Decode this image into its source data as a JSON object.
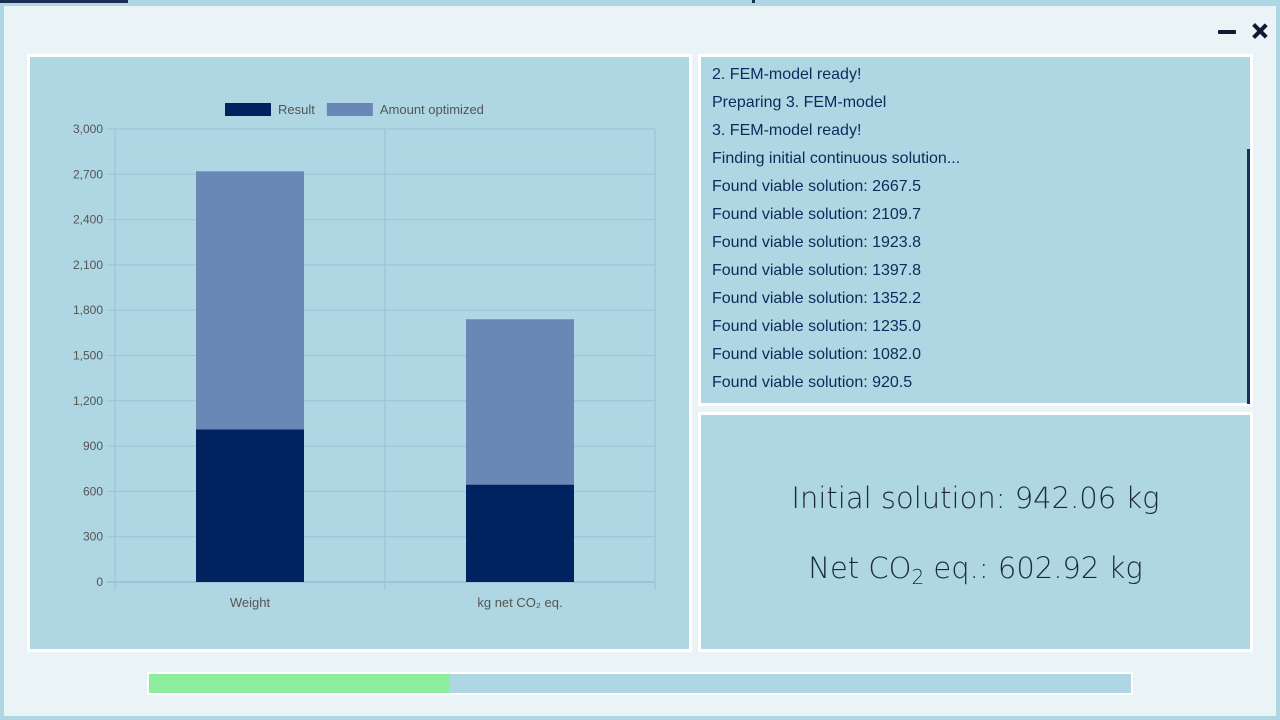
{
  "window": {
    "controls": {
      "minimize_icon": "minimize-icon",
      "close_icon": "close-icon"
    }
  },
  "chart_data": {
    "type": "bar",
    "stacked": true,
    "categories": [
      "Weight",
      "kg net CO₂ eq."
    ],
    "series": [
      {
        "name": "Result",
        "values": [
          1010,
          645
        ],
        "color": "#00235f"
      },
      {
        "name": "Amount optimized",
        "values": [
          1710,
          1095
        ],
        "color": "#6a88b6"
      }
    ],
    "ylim": [
      0,
      3000
    ],
    "yticks": [
      "0",
      "300",
      "600",
      "900",
      "1,200",
      "1,500",
      "1,800",
      "2,100",
      "2,400",
      "2,700",
      "3,000"
    ],
    "ytick_values": [
      0,
      300,
      600,
      900,
      1200,
      1500,
      1800,
      2100,
      2400,
      2700,
      3000
    ],
    "grid": true,
    "legend_position": "top",
    "title": "",
    "xlabel": "",
    "ylabel": ""
  },
  "log": {
    "lines": [
      "2. FEM-model ready!",
      "Preparing 3. FEM-model",
      "3. FEM-model ready!",
      "Finding initial continuous solution...",
      "Found viable solution: 2667.5",
      "Found viable solution: 2109.7",
      "Found viable solution: 1923.8",
      "Found viable solution: 1397.8",
      "Found viable solution: 1352.2",
      "Found viable solution: 1235.0",
      "Found viable solution: 1082.0",
      "Found viable solution: 920.5"
    ]
  },
  "results": {
    "initial_solution_label": "Initial solution: 942.06 kg",
    "net_co2_prefix": "Net CO",
    "net_co2_subscript": "2",
    "net_co2_suffix": " eq.: 602.92 kg"
  },
  "progress": {
    "fraction": 0.305,
    "color": "#8ded9f"
  }
}
